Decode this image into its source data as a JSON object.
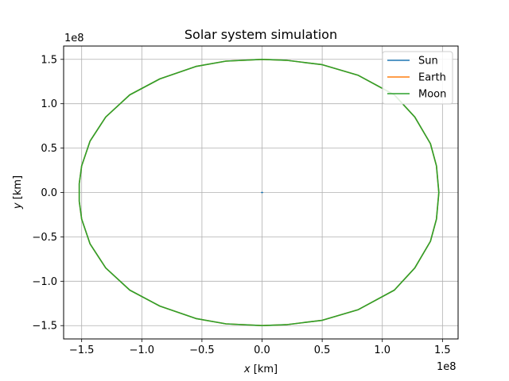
{
  "chart_data": {
    "type": "line",
    "title": "Solar system simulation",
    "xlabel_var": "x",
    "xlabel_unit": " [km]",
    "ylabel_var": "y",
    "ylabel_unit": " [km]",
    "x_offset_text": "1e8",
    "y_offset_text": "1e8",
    "xlim": [
      -1.65,
      1.63
    ],
    "ylim": [
      -1.65,
      1.65
    ],
    "scale_multiplier": 100000000,
    "grid": true,
    "legend_position": "upper right",
    "xticks": [
      -1.5,
      -1.0,
      -0.5,
      0.0,
      0.5,
      1.0,
      1.5
    ],
    "xtick_labels": [
      "−1.5",
      "−1.0",
      "−0.5",
      "0.0",
      "0.5",
      "1.0",
      "1.5"
    ],
    "yticks": [
      -1.5,
      -1.0,
      -0.5,
      0.0,
      0.5,
      1.0,
      1.5
    ],
    "ytick_labels": [
      "−1.5",
      "−1.0",
      "−0.5",
      "0.0",
      "0.5",
      "1.0",
      "1.5"
    ],
    "series": [
      {
        "name": "Sun",
        "color": "#1f77b4",
        "x": [
          -0.005,
          0.0,
          0.005
        ],
        "y": [
          0.0,
          0.0,
          0.0
        ]
      },
      {
        "name": "Earth",
        "color": "#ff7f0e",
        "x": [
          1.47,
          1.45,
          1.4,
          1.27,
          1.1,
          0.8,
          0.5,
          0.2,
          0.0,
          -0.3,
          -0.55,
          -0.85,
          -1.1,
          -1.3,
          -1.43,
          -1.5,
          -1.52,
          -1.52,
          -1.5,
          -1.43,
          -1.3,
          -1.1,
          -0.85,
          -0.55,
          -0.3,
          0.0,
          0.2,
          0.5,
          0.8,
          1.1,
          1.27,
          1.4,
          1.45,
          1.47
        ],
        "y": [
          0.0,
          0.3,
          0.55,
          0.85,
          1.1,
          1.32,
          1.44,
          1.49,
          1.5,
          1.48,
          1.42,
          1.28,
          1.1,
          0.85,
          0.58,
          0.3,
          0.1,
          -0.1,
          -0.3,
          -0.58,
          -0.85,
          -1.1,
          -1.28,
          -1.42,
          -1.48,
          -1.5,
          -1.49,
          -1.44,
          -1.32,
          -1.1,
          -0.85,
          -0.55,
          -0.3,
          0.0
        ]
      },
      {
        "name": "Moon",
        "color": "#2ca02c",
        "x": [
          1.47,
          1.45,
          1.4,
          1.27,
          1.1,
          0.8,
          0.5,
          0.2,
          0.0,
          -0.3,
          -0.55,
          -0.85,
          -1.1,
          -1.3,
          -1.43,
          -1.5,
          -1.52,
          -1.52,
          -1.5,
          -1.43,
          -1.3,
          -1.1,
          -0.85,
          -0.55,
          -0.3,
          0.0,
          0.2,
          0.5,
          0.8,
          1.1,
          1.27,
          1.4,
          1.45,
          1.47
        ],
        "y": [
          0.0,
          0.3,
          0.55,
          0.85,
          1.1,
          1.32,
          1.44,
          1.49,
          1.5,
          1.48,
          1.42,
          1.28,
          1.1,
          0.85,
          0.58,
          0.3,
          0.1,
          -0.1,
          -0.3,
          -0.58,
          -0.85,
          -1.1,
          -1.28,
          -1.42,
          -1.48,
          -1.5,
          -1.49,
          -1.44,
          -1.32,
          -1.1,
          -0.85,
          -0.55,
          -0.3,
          0.0
        ]
      }
    ]
  }
}
